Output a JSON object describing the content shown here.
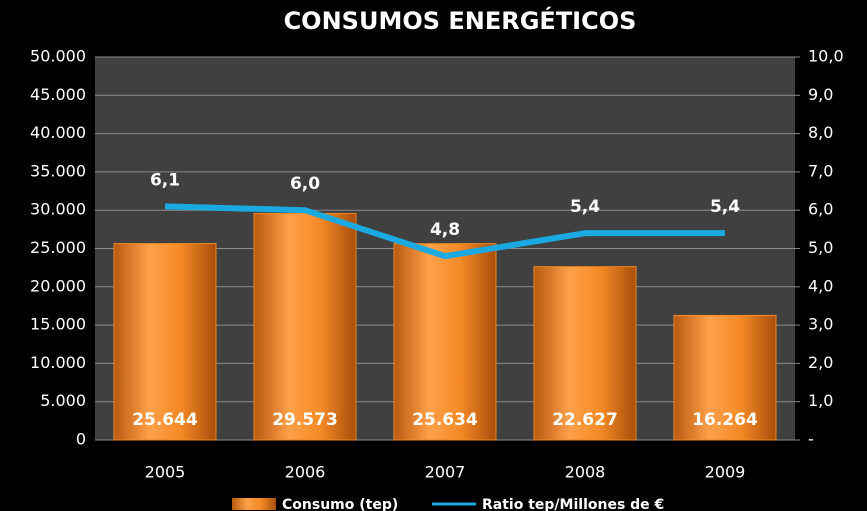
{
  "chart_data": {
    "type": "bar",
    "title": "CONSUMOS ENERGÉTICOS",
    "categories": [
      "2005",
      "2006",
      "2007",
      "2008",
      "2009"
    ],
    "series": [
      {
        "name": "Consumo (tep)",
        "type": "bar",
        "color": "#f08a24",
        "values": [
          25644,
          29573,
          25634,
          22627,
          16264
        ],
        "value_labels": [
          "25.644",
          "29.573",
          "25.634",
          "22.627",
          "16.264"
        ]
      },
      {
        "name": "Ratio tep/Millones de €",
        "type": "line",
        "axis": "y2",
        "color": "#1aa9e0",
        "values": [
          6.1,
          6.0,
          4.8,
          5.4,
          5.4
        ],
        "value_labels": [
          "6,1",
          "6,0",
          "4,8",
          "5,4",
          "5,4"
        ]
      }
    ],
    "ylim": [
      0,
      50000
    ],
    "yticks": [
      0,
      {
        "value": 5000,
        "label": "5.000"
      },
      {
        "value": 10000,
        "label": "10.000"
      },
      {
        "value": 15000,
        "label": "15.000"
      },
      {
        "value": 20000,
        "label": "20.000"
      },
      {
        "value": 25000,
        "label": "25.000"
      },
      {
        "value": 30000,
        "label": "30.000"
      },
      {
        "value": 35000,
        "label": "35.000"
      },
      {
        "value": 40000,
        "label": "40.000"
      },
      {
        "value": 45000,
        "label": "45.000"
      },
      {
        "value": 50000,
        "label": "50.000"
      }
    ],
    "y2lim": [
      0,
      10
    ],
    "y2ticks": [
      {
        "value": 0,
        "label": "-"
      },
      {
        "value": 1,
        "label": "1,0"
      },
      {
        "value": 2,
        "label": "2,0"
      },
      {
        "value": 3,
        "label": "3,0"
      },
      {
        "value": 4,
        "label": "4,0"
      },
      {
        "value": 5,
        "label": "5,0"
      },
      {
        "value": 6,
        "label": "6,0"
      },
      {
        "value": 7,
        "label": "7,0"
      },
      {
        "value": 8,
        "label": "8,0"
      },
      {
        "value": 9,
        "label": "9,0"
      },
      {
        "value": 10,
        "label": "10,0"
      }
    ],
    "grid": true,
    "legend": "bottom"
  }
}
